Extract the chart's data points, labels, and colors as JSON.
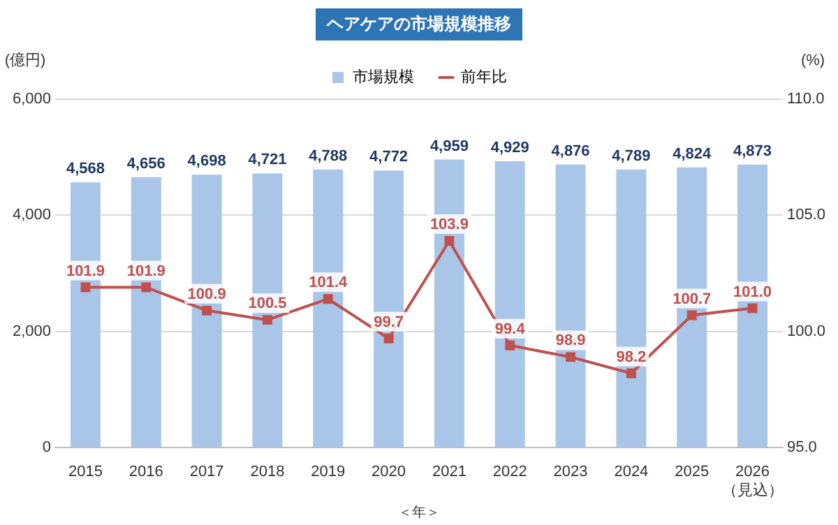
{
  "chart_data": {
    "type": "bar",
    "title": "ヘアケアの市場規模推移",
    "xlabel": "＜年＞",
    "ylabel": "(億円)",
    "y2label": "(%)",
    "categories": [
      "2015",
      "2016",
      "2017",
      "2018",
      "2019",
      "2020",
      "2021",
      "2022",
      "2023",
      "2024",
      "2025",
      "2026\n（見込）"
    ],
    "series": [
      {
        "name": "市場規模",
        "color": "#a9c6e8",
        "values": [
          4568,
          4656,
          4698,
          4721,
          4788,
          4772,
          4959,
          4929,
          4876,
          4789,
          4824,
          4873
        ],
        "value_labels": [
          "4,568",
          "4,656",
          "4,698",
          "4,721",
          "4,788",
          "4,772",
          "4,959",
          "4,929",
          "4,876",
          "4,789",
          "4,824",
          "4,873"
        ]
      },
      {
        "name": "前年比",
        "type": "line",
        "axis": "y2",
        "color": "#c0504d",
        "marker": "square",
        "values": [
          101.9,
          101.9,
          100.9,
          100.5,
          101.4,
          99.7,
          103.9,
          99.4,
          98.9,
          98.2,
          100.7,
          101.0
        ],
        "value_labels": [
          "101.9",
          "101.9",
          "100.9",
          "100.5",
          "101.4",
          "99.7",
          "103.9",
          "99.4",
          "98.9",
          "98.2",
          "100.7",
          "101.0"
        ]
      }
    ],
    "ylim": [
      0,
      6000
    ],
    "yticks": [
      0,
      {
        "value": 2000,
        "label": "2,000"
      },
      {
        "value": 4000,
        "label": "4,000"
      },
      {
        "value": 6000,
        "label": "6,000"
      }
    ],
    "y2lim": [
      95,
      110
    ],
    "y2ticks": [
      {
        "value": 95,
        "label": "95.0"
      },
      {
        "value": 100,
        "label": "100.0"
      },
      {
        "value": 105,
        "label": "105.0"
      },
      {
        "value": 110,
        "label": "110.0"
      }
    ],
    "grid": "y",
    "legend": "top"
  }
}
